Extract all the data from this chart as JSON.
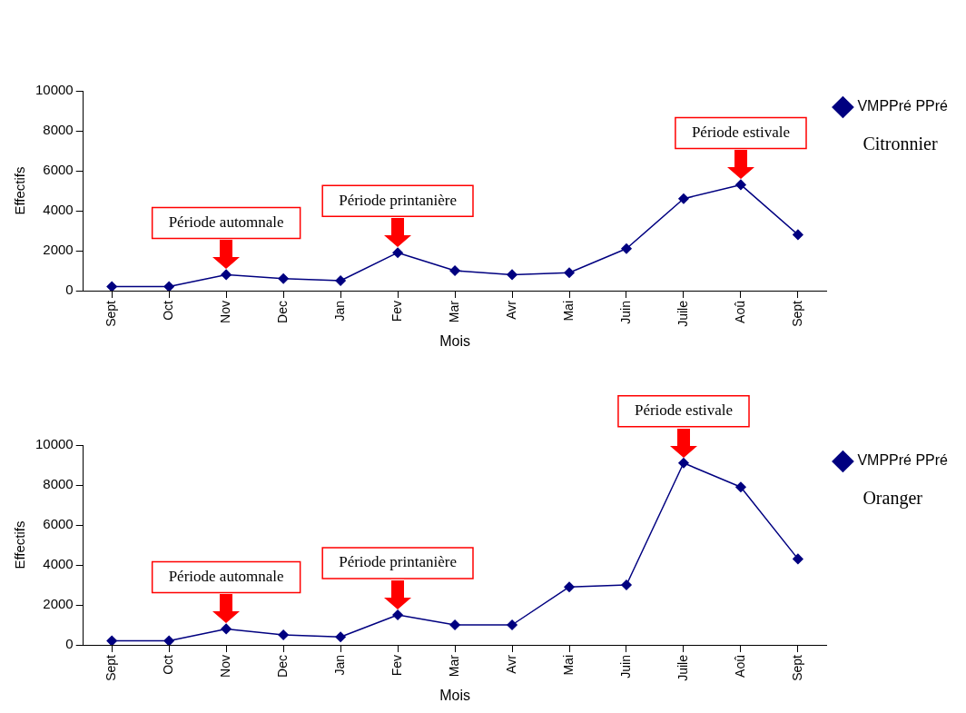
{
  "chart_data": [
    {
      "type": "line",
      "xlabel": "Mois",
      "ylabel": "Effectifs",
      "categories": [
        "Sept",
        "Oct",
        "Nov",
        "Dec",
        "Jan",
        "Fev",
        "Mar",
        "Avr",
        "Mai",
        "Juin",
        "Juile",
        "Aoû",
        "Sept"
      ],
      "series": [
        {
          "name": "VMPPré PPré",
          "color": "#000080",
          "values": [
            200,
            200,
            800,
            600,
            500,
            1900,
            1000,
            800,
            900,
            2100,
            4600,
            5300,
            2800
          ]
        }
      ],
      "ylim": [
        0,
        10000
      ],
      "yticks": [
        0,
        2000,
        4000,
        6000,
        8000,
        10000
      ],
      "marker": "diamond",
      "legend": "top right",
      "annotations": [
        {
          "text": "Période automnale",
          "x": "Nov",
          "y": 800
        },
        {
          "text": "Période printanière",
          "x": "Fev",
          "y": 1900
        },
        {
          "text": "Période estivale",
          "x": "Aoû",
          "y": 5300
        },
        "Citronnier"
      ]
    },
    {
      "type": "line",
      "xlabel": "Mois",
      "ylabel": "Effectifs",
      "categories": [
        "Sept",
        "Oct",
        "Nov",
        "Dec",
        "Jan",
        "Fev",
        "Mar",
        "Avr",
        "Mai",
        "Juin",
        "Juile",
        "Aoû",
        "Sept"
      ],
      "series": [
        {
          "name": "VMPPré PPré",
          "color": "#000080",
          "values": [
            200,
            200,
            800,
            500,
            400,
            1500,
            1000,
            1000,
            2900,
            3000,
            9100,
            7900,
            4300
          ]
        }
      ],
      "ylim": [
        0,
        10000
      ],
      "yticks": [
        0,
        2000,
        4000,
        6000,
        8000,
        10000
      ],
      "marker": "diamond",
      "legend": "top right",
      "annotations": [
        {
          "text": "Période automnale",
          "x": "Nov",
          "y": 800
        },
        {
          "text": "Période printanière",
          "x": "Fev",
          "y": 1500
        },
        {
          "text": "Période estivale",
          "x": "Juile",
          "y": 9100
        },
        "Oranger"
      ]
    }
  ]
}
